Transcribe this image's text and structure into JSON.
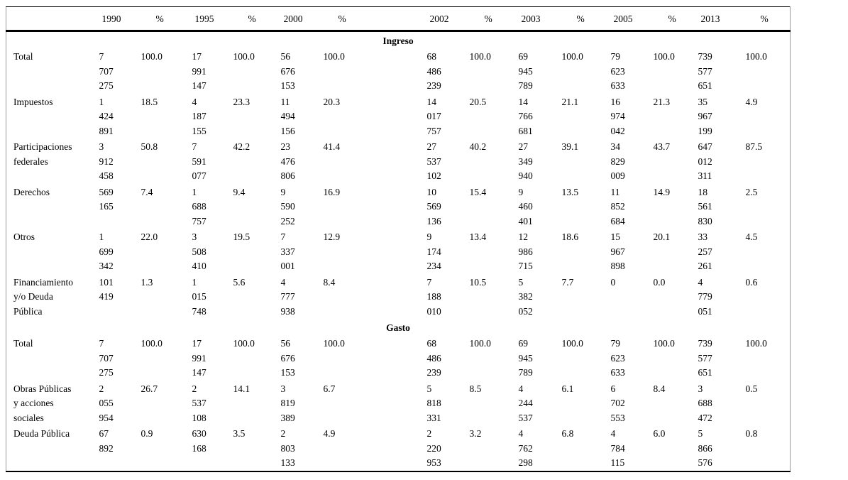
{
  "table": {
    "columns": [
      "",
      "1990",
      "%",
      "1995",
      "%",
      "2000",
      "%",
      "2002",
      "%",
      "2003",
      "%",
      "2005",
      "%",
      "2013",
      "%"
    ],
    "sections": [
      {
        "title": "Ingreso",
        "rows": [
          {
            "label": "Total",
            "values": [
              "7 707 275",
              "100.0",
              "17 991 147",
              "100.0",
              "56 676 153",
              "100.0",
              "68 486 239",
              "100.0",
              "69 945 789",
              "100.0",
              "79 623 633",
              "100.0",
              "739 577 651",
              "100.0"
            ]
          },
          {
            "label": "Impuestos",
            "values": [
              "1 424 891",
              "18.5",
              "4 187 155",
              "23.3",
              "11 494 156",
              "20.3",
              "14 017 757",
              "20.5",
              "14 766 681",
              "21.1",
              "16 974 042",
              "21.3",
              "35 967 199",
              "4.9"
            ]
          },
          {
            "label": "Participaciones\nfederales",
            "values": [
              "3 912 458",
              "50.8",
              "7 591 077",
              "42.2",
              "23 476 806",
              "41.4",
              "27 537 102",
              "40.2",
              "27 349 940",
              "39.1",
              "34 829 009",
              "43.7",
              "647 012 311",
              "87.5"
            ]
          },
          {
            "label": "Derechos",
            "values": [
              "569 165",
              "7.4",
              "1 688 757",
              "9.4",
              "9 590 252",
              "16.9",
              "10 569 136",
              "15.4",
              "9 460 401",
              "13.5",
              "11 852 684",
              "14.9",
              "18 561 830",
              "2.5"
            ]
          },
          {
            "label": "Otros",
            "values": [
              "1 699 342",
              "22.0",
              "3 508 410",
              "19.5",
              "7 337 001",
              "12.9",
              "9 174 234",
              "13.4",
              "12 986 715",
              "18.6",
              "15 967 898",
              "20.1",
              "33 257 261",
              "4.5"
            ]
          },
          {
            "label": "Financiamiento\ny/o Deuda\nPública",
            "values": [
              "101 419",
              "1.3",
              "1 015 748",
              "5.6",
              "4 777 938",
              "8.4",
              "7 188 010",
              "10.5",
              "5 382 052",
              "7.7",
              "0",
              "0.0",
              "4 779 051",
              "0.6"
            ]
          }
        ]
      },
      {
        "title": "Gasto",
        "rows": [
          {
            "label": "Total",
            "values": [
              "7 707 275",
              "100.0",
              "17 991 147",
              "100.0",
              "56 676 153",
              "100.0",
              "68 486 239",
              "100.0",
              "69 945 789",
              "100.0",
              "79 623 633",
              "100.0",
              "739 577 651",
              "100.0"
            ]
          },
          {
            "label": "Obras Públicas\ny acciones\nsociales",
            "values": [
              "2 055 954",
              "26.7",
              "2 537 108",
              "14.1",
              "3 819 389",
              "6.7",
              "5 818 331",
              "8.5",
              "4 244 537",
              "6.1",
              "6 702 553",
              "8.4",
              "3 688 472",
              "0.5"
            ]
          },
          {
            "label": "Deuda Pública",
            "values": [
              "67 892",
              "0.9",
              "630 168",
              "3.5",
              "2 803 133",
              "4.9",
              "2 220 953",
              "3.2",
              "4 762 298",
              "6.8",
              "4 784 115",
              "6.0",
              "5 866 576",
              "0.8"
            ]
          }
        ]
      }
    ]
  }
}
